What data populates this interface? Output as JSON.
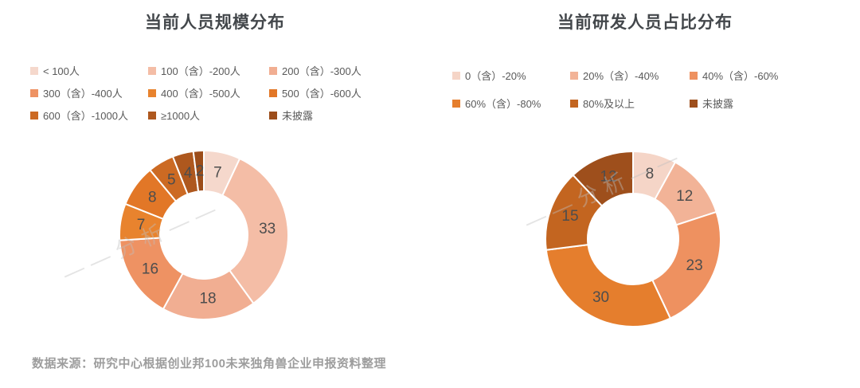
{
  "chart_data": [
    {
      "type": "pie",
      "subtype": "donut",
      "title": "当前人员规模分布",
      "legend_position": "top",
      "total": 100,
      "categories": [
        "< 100人",
        "100（含）-200人",
        "200（含）-300人",
        "300（含）-400人",
        "400（含）-500人",
        "500（含）-600人",
        "600（含）-1000人",
        "≥1000人",
        "未披露"
      ],
      "values": [
        7,
        33,
        18,
        16,
        7,
        8,
        5,
        4,
        2
      ],
      "colors": [
        "#f5d8cc",
        "#f4bda6",
        "#f1ae92",
        "#ee9263",
        "#e8832e",
        "#e27727",
        "#cc6a23",
        "#ae581e",
        "#9c4d1a"
      ]
    },
    {
      "type": "pie",
      "subtype": "donut",
      "title": "当前研发人员占比分布",
      "legend_position": "top",
      "total": 100,
      "categories": [
        "0（含）-20%",
        "20%（含）-40%",
        "40%（含）-60%",
        "60%（含）-80%",
        "80%及以上",
        "未披露"
      ],
      "values": [
        8,
        12,
        23,
        30,
        15,
        12
      ],
      "colors": [
        "#f5d5c7",
        "#f2b397",
        "#ee9160",
        "#e57e2d",
        "#c36520",
        "#9e4f1c"
      ]
    }
  ],
  "watermark_text": "——分析——",
  "source_note": "数据来源：研究中心根据创业邦100未来独角兽企业申报资料整理"
}
